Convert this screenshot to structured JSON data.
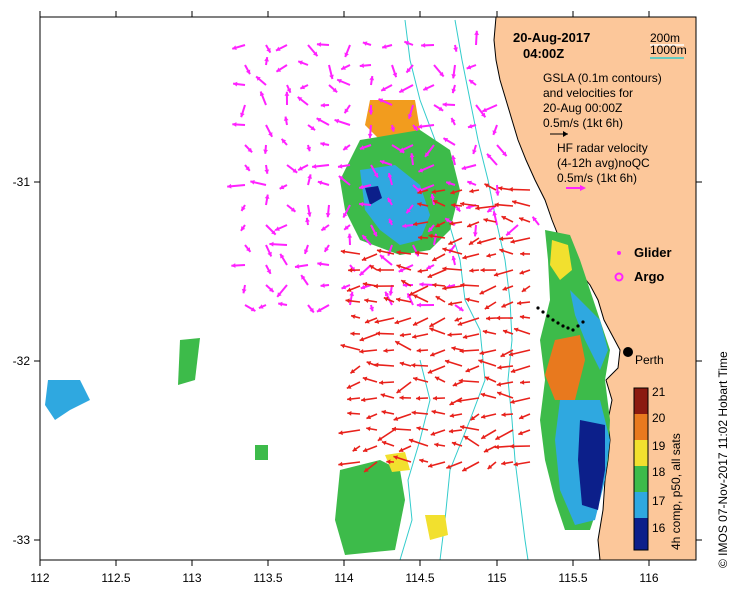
{
  "title": {
    "date": "20-Aug-2017",
    "time": "04:00Z"
  },
  "depth_legend": {
    "shallow": "200m",
    "deep": "1000m",
    "colors": {
      "shallow": "#ffffff",
      "deep": "#33cccc"
    }
  },
  "legend": {
    "gsla_lines": [
      "GSLA (0.1m contours)",
      "and velocities for",
      "20-Aug 00:00Z",
      "0.5m/s (1kt 6h)"
    ],
    "hf_lines": [
      "HF radar velocity",
      "(4-12h avg)noQC",
      "0.5m/s (1kt 6h)"
    ],
    "glider": "Glider",
    "argo": "Argo"
  },
  "city": "Perth",
  "credit": "© IMOS 07-Nov-2017 11:02 Hobart Time",
  "axes": {
    "x_ticks": [
      "112",
      "112.5",
      "113",
      "113.5",
      "114",
      "114.5",
      "115",
      "115.5",
      "116"
    ],
    "y_ticks": [
      "-31",
      "-32",
      "-33"
    ]
  },
  "colorbar": {
    "label": "4h comp, p50, all sats",
    "ticks": [
      "21",
      "20",
      "19",
      "18",
      "17",
      "16"
    ],
    "colors": [
      "#8b1a10",
      "#e8791e",
      "#f2e02e",
      "#3dbb4a",
      "#2fa8e0",
      "#0c1f8a"
    ]
  },
  "colors": {
    "land": "#fcc79a",
    "ocean": "#ffffff",
    "gsla_arrow": "#ff22ff",
    "hf_arrow": "#e8211b",
    "coast": "#000000"
  }
}
